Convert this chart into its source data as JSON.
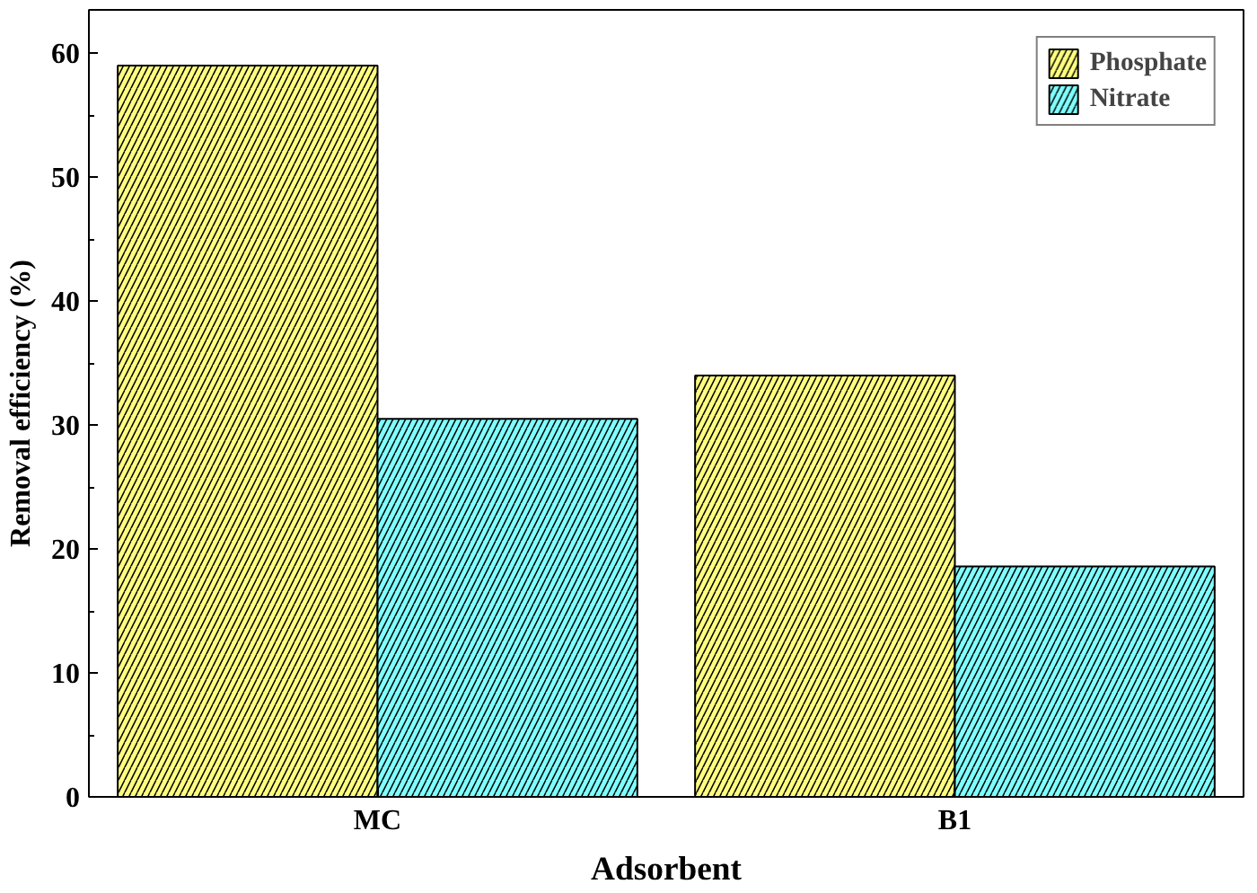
{
  "chart_data": {
    "type": "bar",
    "xlabel": "Adsorbent",
    "ylabel": "Removal efficiency (%)",
    "categories": [
      "MC",
      "B1"
    ],
    "series": [
      {
        "name": "Phosphate",
        "color": "#ffff80",
        "values": [
          59,
          34
        ]
      },
      {
        "name": "Nitrate",
        "color": "#80ffff",
        "values": [
          30.5,
          18.6
        ]
      }
    ],
    "ylim": [
      0,
      63.5
    ],
    "yticks": [
      0,
      10,
      20,
      30,
      40,
      50,
      60
    ],
    "grid": false,
    "legend": "top right"
  }
}
